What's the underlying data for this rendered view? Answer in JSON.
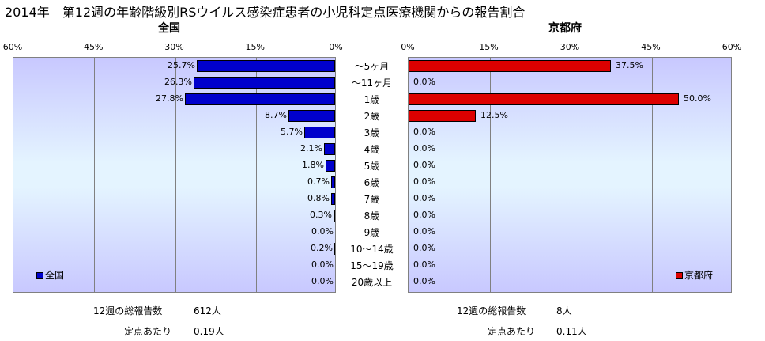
{
  "title": "2014年　第12週の年齢階級別RSウイルス感染症患者の小児科定点医療機関からの報告割合",
  "categories": [
    "～5ヶ月",
    "～11ヶ月",
    "1歳",
    "2歳",
    "3歳",
    "4歳",
    "5歳",
    "6歳",
    "7歳",
    "8歳",
    "9歳",
    "10～14歳",
    "15～19歳",
    "20歳以上"
  ],
  "chart_data": [
    {
      "type": "bar",
      "orientation": "horizontal",
      "direction": "reversed",
      "title": "全国",
      "xlim": [
        0,
        60
      ],
      "ticks": [
        "0%",
        "15%",
        "30%",
        "45%",
        "60%"
      ],
      "tick_values": [
        0,
        15,
        30,
        45,
        60
      ],
      "grid": true,
      "legend": "全国",
      "legend_position": "bottom-left",
      "color": "#0000cc",
      "categories": [
        "～5ヶ月",
        "～11ヶ月",
        "1歳",
        "2歳",
        "3歳",
        "4歳",
        "5歳",
        "6歳",
        "7歳",
        "8歳",
        "9歳",
        "10～14歳",
        "15～19歳",
        "20歳以上"
      ],
      "values": [
        25.7,
        26.3,
        27.8,
        8.7,
        5.7,
        2.1,
        1.8,
        0.7,
        0.8,
        0.3,
        0.0,
        0.2,
        0.0,
        0.0
      ],
      "labels": [
        "25.7%",
        "26.3%",
        "27.8%",
        "8.7%",
        "5.7%",
        "2.1%",
        "1.8%",
        "0.7%",
        "0.8%",
        "0.3%",
        "0.0%",
        "0.2%",
        "0.0%",
        "0.0%"
      ]
    },
    {
      "type": "bar",
      "orientation": "horizontal",
      "direction": "normal",
      "title": "京都府",
      "xlim": [
        0,
        60
      ],
      "ticks": [
        "0%",
        "15%",
        "30%",
        "45%",
        "60%"
      ],
      "tick_values": [
        0,
        15,
        30,
        45,
        60
      ],
      "grid": true,
      "legend": "京都府",
      "legend_position": "bottom-right",
      "color": "#dd0000",
      "categories": [
        "～5ヶ月",
        "～11ヶ月",
        "1歳",
        "2歳",
        "3歳",
        "4歳",
        "5歳",
        "6歳",
        "7歳",
        "8歳",
        "9歳",
        "10～14歳",
        "15～19歳",
        "20歳以上"
      ],
      "values": [
        37.5,
        0.0,
        50.0,
        12.5,
        0.0,
        0.0,
        0.0,
        0.0,
        0.0,
        0.0,
        0.0,
        0.0,
        0.0,
        0.0
      ],
      "labels": [
        "37.5%",
        "0.0%",
        "50.0%",
        "12.5%",
        "0.0%",
        "0.0%",
        "0.0%",
        "0.0%",
        "0.0%",
        "0.0%",
        "0.0%",
        "0.0%",
        "0.0%",
        "0.0%"
      ]
    }
  ],
  "footer": {
    "national": {
      "total_label": "12週の総報告数",
      "total_value": "612人",
      "per_site_label": "定点あたり",
      "per_site_value": "0.19人"
    },
    "kyoto": {
      "total_label": "12週の総報告数",
      "total_value": "8人",
      "per_site_label": "定点あたり",
      "per_site_value": "0.11人"
    }
  }
}
